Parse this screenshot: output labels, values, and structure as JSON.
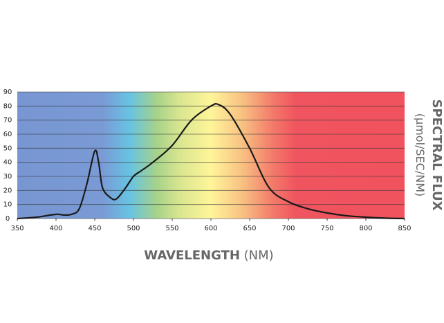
{
  "chart_data": {
    "type": "line",
    "x_label": "WAVELENGTH",
    "x_label_unit": "(NM)",
    "y_label": "SPECTRAL FLUX",
    "y_label_unit": "(µmol/SEC/NM)",
    "x": [
      350,
      375,
      400,
      410,
      420,
      430,
      440,
      450,
      455,
      460,
      470,
      478,
      490,
      500,
      510,
      525,
      550,
      575,
      600,
      610,
      625,
      650,
      675,
      700,
      725,
      750,
      775,
      800,
      825,
      850
    ],
    "series": [
      {
        "color": "#1a1a1a",
        "values": [
          0,
          1,
          3,
          2.5,
          3,
          7,
          25,
          48,
          40,
          22,
          15,
          14,
          22,
          30,
          34,
          40,
          52,
          70,
          80,
          81,
          74,
          50,
          22,
          12,
          7,
          4,
          2,
          1,
          0.3,
          0
        ]
      }
    ],
    "xlim": [
      350,
      850
    ],
    "ylim": [
      0,
      90
    ],
    "xticks": [
      350,
      400,
      450,
      500,
      550,
      600,
      650,
      700,
      750,
      800,
      850
    ],
    "yticks": [
      0,
      10,
      20,
      30,
      40,
      50,
      60,
      70,
      80,
      90
    ],
    "grid": true
  }
}
